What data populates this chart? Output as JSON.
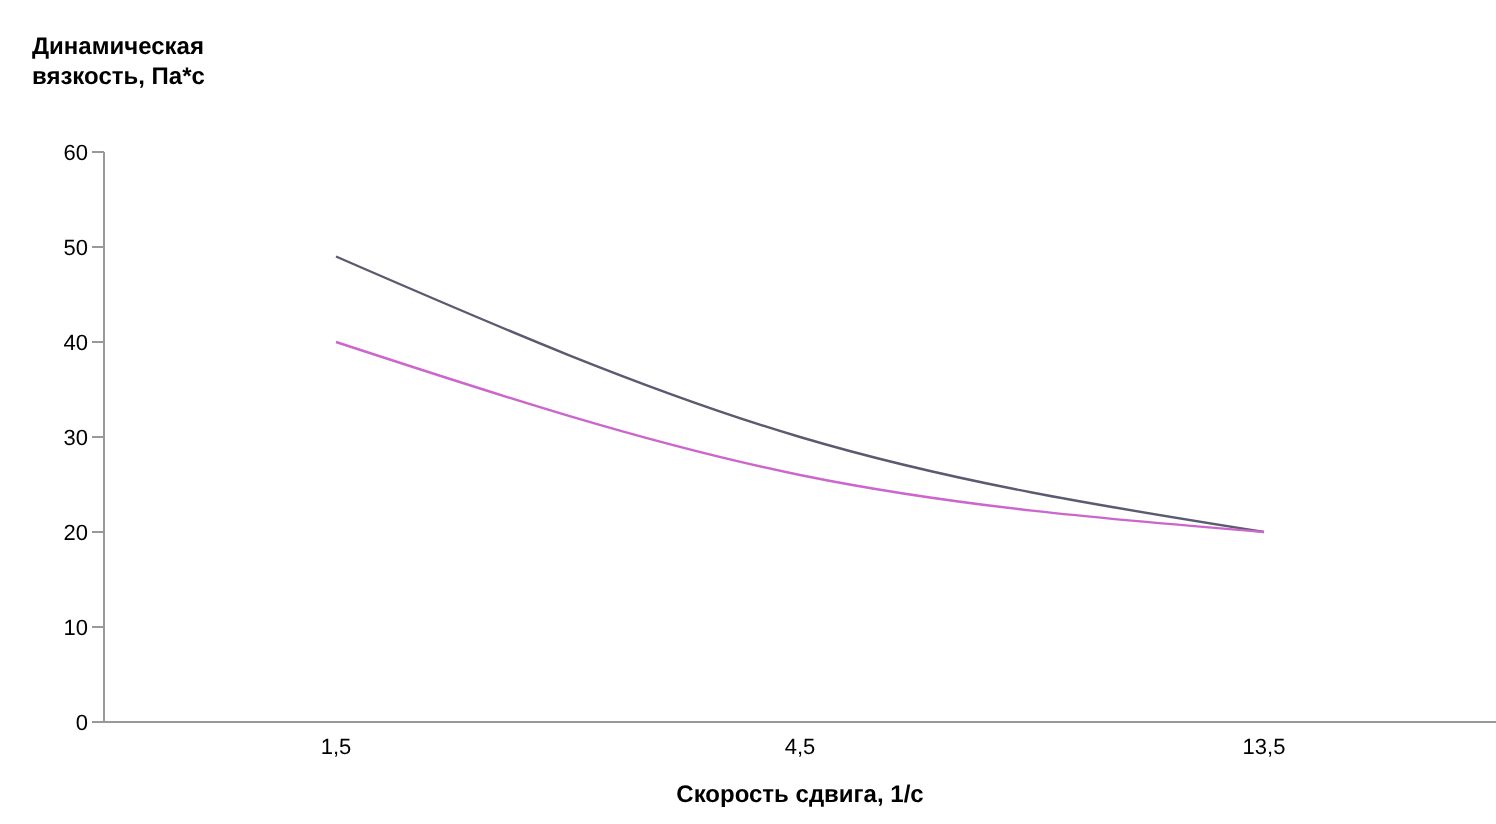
{
  "chart_data": {
    "type": "line",
    "ylabel": "Динамическая вязкость, Па*с",
    "xlabel": "Скорость сдвига, 1/с",
    "categories": [
      "1,5",
      "4,5",
      "13,5"
    ],
    "ylim": [
      0,
      60
    ],
    "yticks": [
      0,
      10,
      20,
      30,
      40,
      50,
      60
    ],
    "grid": false,
    "legend": false,
    "marker": "none",
    "series": [
      {
        "color": "#5a5a70",
        "values": [
          49,
          30,
          20
        ]
      },
      {
        "color": "#cc66cc",
        "values": [
          40,
          26,
          20
        ]
      }
    ]
  }
}
